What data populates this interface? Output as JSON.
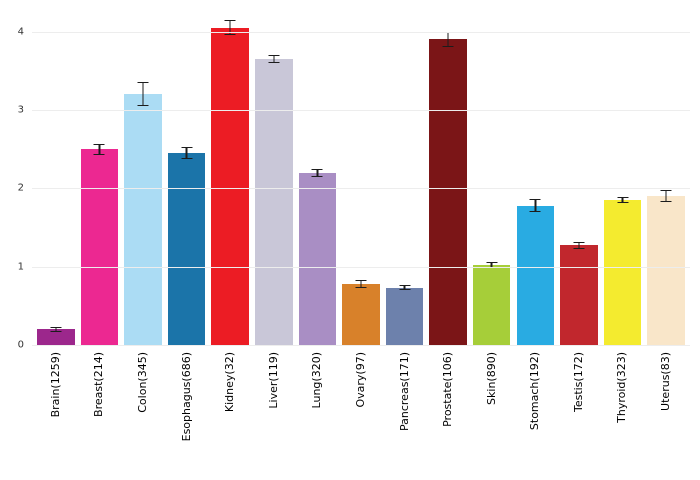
{
  "chart_data": {
    "type": "bar",
    "title": "",
    "xlabel": "",
    "ylabel": "",
    "ylim": [
      0,
      4.3
    ],
    "yticks": [
      0,
      1,
      2,
      3,
      4
    ],
    "grid": true,
    "legend": "none",
    "error_bars": true,
    "error_bar_color": "#1c1c1c",
    "categories": [
      "Brain(1259)",
      "Breast(214)",
      "Colon(345)",
      "Esophagus(686)",
      "Kidney(32)",
      "Liver(119)",
      "Lung(320)",
      "Ovary(97)",
      "Pancreas(171)",
      "Prostate(106)",
      "Skin(890)",
      "Stomach(192)",
      "Testis(172)",
      "Thyroid(323)",
      "Uterus(83)"
    ],
    "values": [
      0.2,
      2.5,
      3.2,
      2.45,
      4.05,
      3.65,
      2.2,
      0.78,
      0.73,
      3.9,
      1.02,
      1.78,
      1.27,
      1.85,
      1.9
    ],
    "errors": [
      0.03,
      0.07,
      0.15,
      0.08,
      0.1,
      0.05,
      0.05,
      0.05,
      0.03,
      0.1,
      0.04,
      0.08,
      0.04,
      0.04,
      0.08
    ],
    "colors": [
      "#9C278C",
      "#EC2891",
      "#ABDCF4",
      "#1B74A9",
      "#EC1C24",
      "#C9C7D8",
      "#A98EC4",
      "#D8812A",
      "#6D81AC",
      "#7B1517",
      "#A6CE39",
      "#29ABE2",
      "#C1272D",
      "#F4EB2F",
      "#F9E6C9"
    ]
  }
}
